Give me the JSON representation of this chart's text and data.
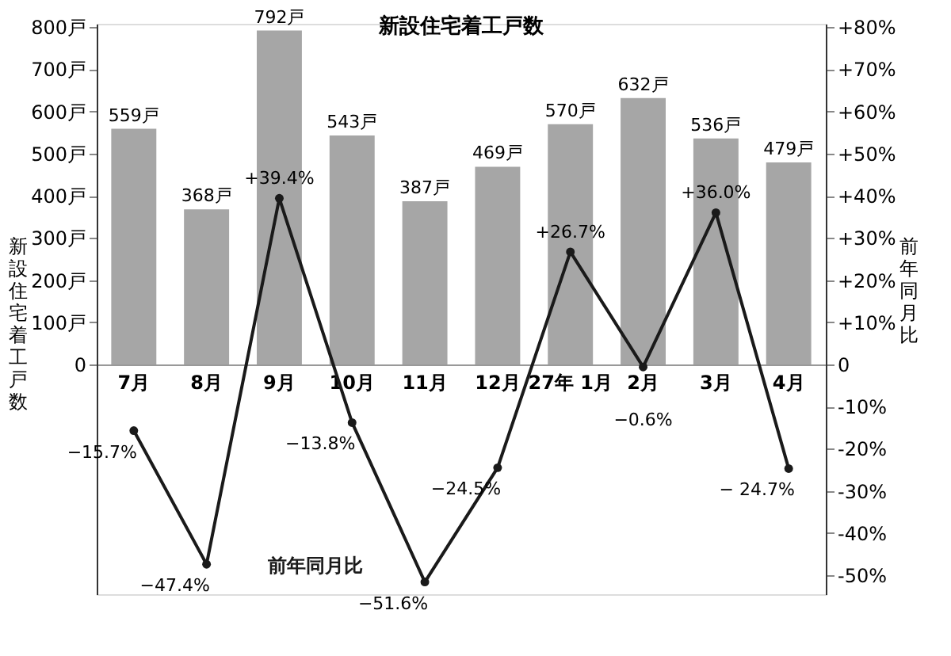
{
  "chart_data": {
    "type": "bar",
    "title": "新設住宅着工戸数",
    "ylabel": "新設住宅着工戸数",
    "y2label": "前年同月比",
    "categories": [
      "7月",
      "8月",
      "9月",
      "10月",
      "11月",
      "12月",
      "27年 1月",
      "2月",
      "3月",
      "4月"
    ],
    "series": [
      {
        "color": "#a6a6a6",
        "values": [
          559,
          368,
          792,
          543,
          387,
          469,
          570,
          632,
          536,
          479
        ],
        "value_labels": [
          "559戸",
          "368戸",
          "792戸",
          "543戸",
          "387戸",
          "469戸",
          "570戸",
          "632戸",
          "536戸",
          "479戸"
        ]
      },
      {
        "type": "line",
        "name": "前年同月比",
        "axis": "y2",
        "color": "#1a1a1a",
        "marker": "circle",
        "values": [
          -15.7,
          -47.4,
          39.4,
          -13.8,
          -51.6,
          -24.5,
          26.7,
          -0.6,
          36.0,
          -24.7
        ],
        "value_labels": [
          "−15.7%",
          "−47.4%",
          "+39.4%",
          "−13.8%",
          "−51.6%",
          "−24.5%",
          "+26.7%",
          "−0.6%",
          "+36.0%",
          "− 24.7%"
        ]
      }
    ],
    "ylim": [
      -545,
      808
    ],
    "yticks": [
      0,
      {
        "value": 100,
        "label": "100戸"
      },
      {
        "value": 200,
        "label": "200戸"
      },
      {
        "value": 300,
        "label": "300戸"
      },
      {
        "value": 400,
        "label": "400戸"
      },
      {
        "value": 500,
        "label": "500戸"
      },
      {
        "value": 600,
        "label": "600戸"
      },
      {
        "value": 700,
        "label": "700戸"
      },
      {
        "value": 800,
        "label": "800戸"
      }
    ],
    "y2lim": [
      -54.5,
      80.8
    ],
    "y2ticks": [
      {
        "value": 80,
        "label": "+80%"
      },
      {
        "value": 70,
        "label": "+70%"
      },
      {
        "value": 60,
        "label": "+60%"
      },
      {
        "value": 50,
        "label": "+50%"
      },
      {
        "value": 40,
        "label": "+40%"
      },
      {
        "value": 30,
        "label": "+30%"
      },
      {
        "value": 20,
        "label": "+20%"
      },
      {
        "value": 10,
        "label": "+10%"
      },
      0,
      {
        "value": -10,
        "label": "-10%"
      },
      {
        "value": -20,
        "label": "-20%"
      },
      {
        "value": -30,
        "label": "-30%"
      },
      {
        "value": -40,
        "label": "-40%"
      },
      {
        "value": -50,
        "label": "-50%"
      }
    ],
    "grid": false
  }
}
